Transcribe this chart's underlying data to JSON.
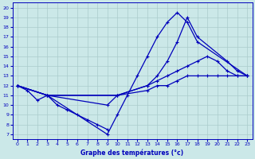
{
  "xlabel": "Graphe des températures (°c)",
  "bg_color": "#cbe8e8",
  "line_color": "#0000bb",
  "grid_color": "#aacccc",
  "xlim": [
    -0.5,
    23.5
  ],
  "ylim": [
    6.5,
    20.5
  ],
  "xticks": [
    0,
    1,
    2,
    3,
    4,
    5,
    6,
    7,
    8,
    9,
    10,
    11,
    12,
    13,
    14,
    15,
    16,
    17,
    18,
    19,
    20,
    21,
    22,
    23
  ],
  "yticks": [
    7,
    8,
    9,
    10,
    11,
    12,
    13,
    14,
    15,
    16,
    17,
    18,
    19,
    20
  ],
  "lines": [
    {
      "x": [
        0,
        3,
        9,
        10,
        11,
        12,
        13,
        14,
        15,
        16,
        17,
        18,
        23
      ],
      "y": [
        12,
        11,
        7,
        9,
        11,
        13,
        15,
        17,
        18.5,
        19.5,
        18.5,
        16.5,
        13
      ]
    },
    {
      "x": [
        0,
        3,
        9,
        10,
        13,
        14,
        15,
        16,
        17,
        18,
        21,
        22,
        23
      ],
      "y": [
        12,
        11,
        10,
        11,
        12,
        13,
        14.5,
        16.5,
        19,
        17,
        14.5,
        13.5,
        13
      ]
    },
    {
      "x": [
        0,
        3,
        10,
        13,
        14,
        15,
        16,
        17,
        18,
        19,
        20,
        21,
        22,
        23
      ],
      "y": [
        12,
        11,
        11,
        12,
        12.5,
        13,
        13.5,
        14,
        14.5,
        15,
        14.5,
        13.5,
        13,
        13
      ]
    },
    {
      "x": [
        0,
        3,
        10,
        13,
        14,
        15,
        16,
        17,
        18,
        19,
        20,
        21,
        22,
        23
      ],
      "y": [
        12,
        11,
        11,
        11.5,
        12,
        12,
        12.5,
        13,
        13,
        13,
        13,
        13,
        13,
        13
      ]
    }
  ],
  "scatter_line": {
    "x": [
      0,
      1,
      2,
      3,
      4,
      5,
      6,
      7,
      8,
      9
    ],
    "y": [
      12,
      11.5,
      10.5,
      11,
      10,
      9.5,
      9,
      8.5,
      8,
      7.5
    ]
  }
}
